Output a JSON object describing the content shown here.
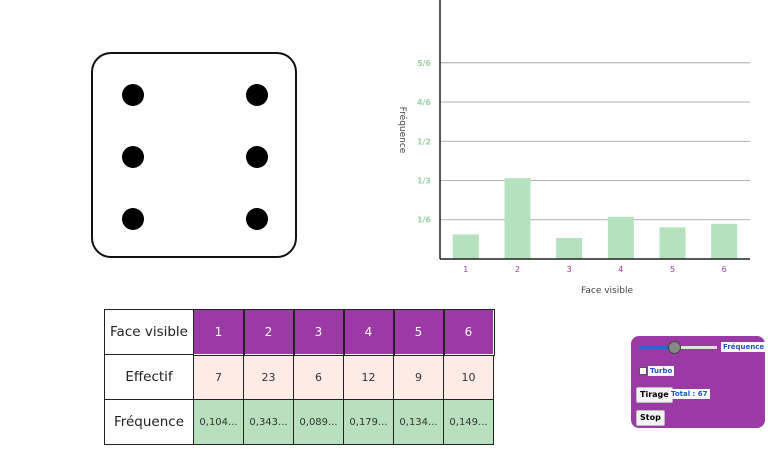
{
  "die": {
    "face_value": 6
  },
  "chart_data": {
    "type": "bar",
    "categories": [
      "1",
      "2",
      "3",
      "4",
      "5",
      "6"
    ],
    "values": [
      0.1045,
      0.3433,
      0.0896,
      0.1791,
      0.1343,
      0.1493
    ],
    "xlabel": "Face visible",
    "ylabel": "Fréquence",
    "ylim": [
      0,
      1.1
    ],
    "yticks": [
      {
        "value": 0.1667,
        "label": "1/6"
      },
      {
        "value": 0.3333,
        "label": "1/3"
      },
      {
        "value": 0.5,
        "label": "1/2"
      },
      {
        "value": 0.6667,
        "label": "4/6"
      },
      {
        "value": 0.8333,
        "label": "5/6"
      }
    ],
    "grid": true,
    "colors": {
      "bar": "#b5e2bd",
      "tick_label_y": "#9bd4a4",
      "tick_label_x": "#9c3aa5",
      "grid": "#999999",
      "axis": "#222222"
    }
  },
  "table": {
    "row_labels": {
      "face": "Face visible",
      "effectif": "Effectif",
      "frequence": "Fréquence"
    },
    "faces": [
      "1",
      "2",
      "3",
      "4",
      "5",
      "6"
    ],
    "effectifs": [
      "7",
      "23",
      "6",
      "12",
      "9",
      "10"
    ],
    "frequences": [
      "0,104...",
      "0,343...",
      "0,089...",
      "0,179...",
      "0,134...",
      "0,149..."
    ],
    "colors": {
      "face_bg": "#9c3aa5",
      "effectif_bg": "#fdebe6",
      "frequence_bg": "#b8e0bd"
    }
  },
  "panel": {
    "slider_value": 0.45,
    "slider_label": "Fréquence",
    "turbo_label": "Turbo",
    "turbo_checked": false,
    "tirage_label": "Tirage",
    "total_label": "Total : 67",
    "stop_label": "Stop",
    "colors": {
      "bg": "#9c3aa5",
      "badge_text": "#1b55c8"
    }
  }
}
